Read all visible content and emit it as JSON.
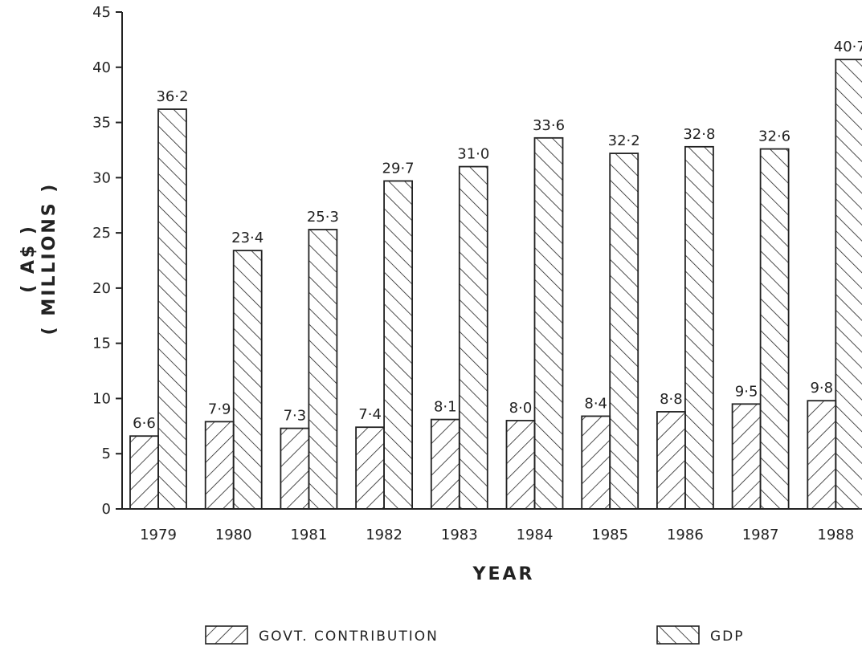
{
  "chart_data": {
    "type": "bar",
    "title": "",
    "xlabel": "YEAR",
    "ylabel_lines": [
      "( A$ )",
      "( MILLIONS )"
    ],
    "ylim": [
      0,
      45
    ],
    "yticks": [
      0,
      5,
      10,
      15,
      20,
      25,
      30,
      35,
      40,
      45
    ],
    "categories": [
      "1979",
      "1980",
      "1981",
      "1982",
      "1983",
      "1984",
      "1985",
      "1986",
      "1987",
      "1988"
    ],
    "series": [
      {
        "name": "GOVT. CONTRIBUTION",
        "values": [
          6.6,
          7.9,
          7.3,
          7.4,
          8.1,
          8.0,
          8.4,
          8.8,
          9.5,
          9.8
        ],
        "labels": [
          "6·6",
          "7·9",
          "7·3",
          "7·4",
          "8·1",
          "8·0",
          "8·4",
          "8·8",
          "9·5",
          "9·8"
        ],
        "pattern": "hatch-forward"
      },
      {
        "name": "GDP",
        "values": [
          36.2,
          23.4,
          25.3,
          29.7,
          31.0,
          33.6,
          32.2,
          32.8,
          32.6,
          40.7
        ],
        "labels": [
          "36·2",
          "23·4",
          "25·3",
          "29·7",
          "31·0",
          "33·6",
          "32·2",
          "32·8",
          "32·6",
          "40·7"
        ],
        "pattern": "hatch-backward"
      }
    ],
    "legend_placement": "bottom",
    "grid": false,
    "colors": {
      "ink": "#222222",
      "background": "#ffffff"
    }
  }
}
